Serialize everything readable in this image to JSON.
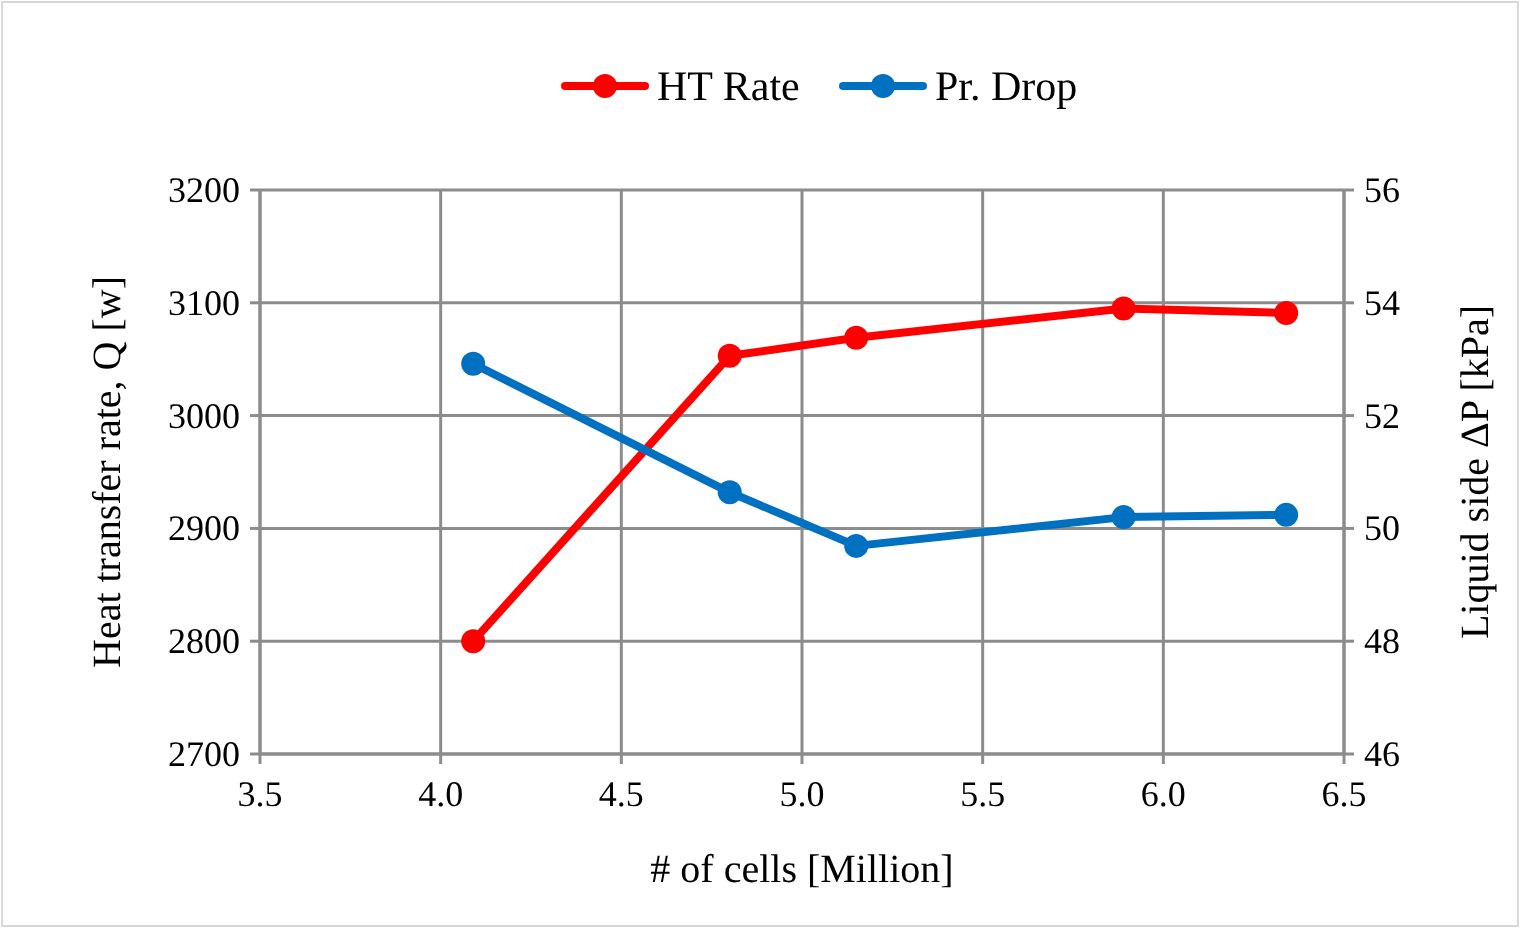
{
  "chart_data": {
    "type": "line",
    "x": [
      4.09,
      4.8,
      5.15,
      5.89,
      6.34
    ],
    "series": [
      {
        "name": "HT Rate",
        "color": "#ff0000",
        "values": [
          2800,
          3053,
          3069,
          3095,
          3091
        ]
      },
      {
        "name": "Pr. Drop",
        "color": "#0070c0",
        "axis": "y2",
        "values": [
          52.92,
          50.64,
          49.69,
          50.2,
          50.24
        ]
      }
    ],
    "xlabel": "# of cells [Million]",
    "ylabel": "Heat transfer rate, Q [w]",
    "y2label": "Liquid side ΔP [kPa]",
    "xlim": [
      3.5,
      6.5
    ],
    "xticks": [
      {
        "value": 3.5,
        "label": "3.5"
      },
      {
        "value": 4,
        "label": "4.0"
      },
      {
        "value": 4.5,
        "label": "4.5"
      },
      {
        "value": 5,
        "label": "5.0"
      },
      {
        "value": 5.5,
        "label": "5.5"
      },
      {
        "value": 6,
        "label": "6.0"
      },
      {
        "value": 6.5,
        "label": "6.5"
      }
    ],
    "ylim": [
      2700,
      3200
    ],
    "yticks": [
      2700,
      2800,
      2900,
      3000,
      3100,
      3200
    ],
    "y2lim": [
      46,
      56
    ],
    "y2ticks": [
      46,
      48,
      50,
      52,
      54,
      56
    ],
    "grid": true,
    "legend": "top",
    "marker": "circle",
    "line_style": "solid"
  }
}
